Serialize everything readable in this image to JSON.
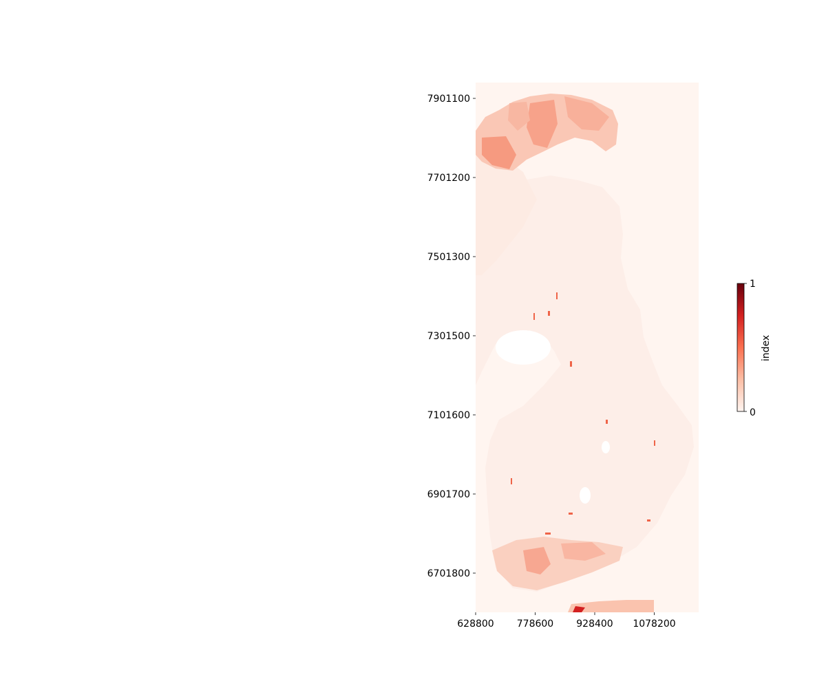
{
  "map": {
    "colormap": "Reds",
    "base_color": "#fff5f0",
    "x_ticks": [
      "628800",
      "778600",
      "928400",
      "1078200"
    ],
    "y_ticks": [
      "7901100",
      "7701200",
      "7501300",
      "7301500",
      "7101600",
      "6901700",
      "6701800"
    ],
    "colorbar": {
      "label": "index",
      "min_label": "0",
      "max_label": "1",
      "colors": [
        "#fff5f0",
        "#fcbea5",
        "#fb7050",
        "#d32020",
        "#67000d"
      ]
    }
  }
}
